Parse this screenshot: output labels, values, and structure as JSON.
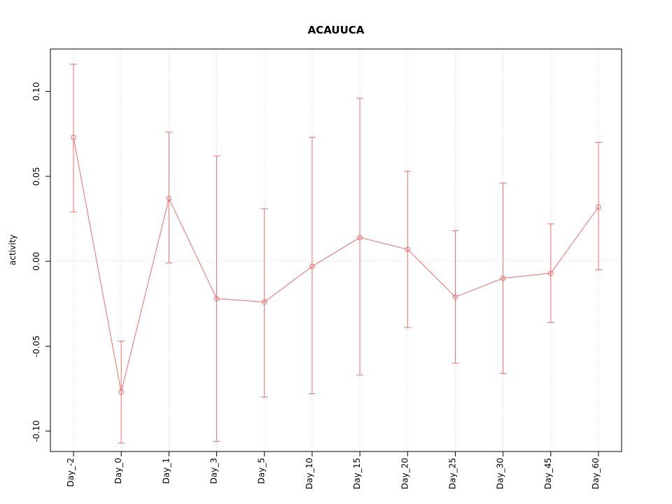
{
  "title": "ACAUUCA",
  "chart_data": {
    "type": "line",
    "title": "ACAUUCA",
    "xlabel": "",
    "ylabel": "activity",
    "categories": [
      "Day_-2",
      "Day_0",
      "Day_1",
      "Day_3",
      "Day_5",
      "Day_10",
      "Day_15",
      "Day_20",
      "Day_25",
      "Day_30",
      "Day_45",
      "Day_60"
    ],
    "series": [
      {
        "name": "activity",
        "values": [
          0.073,
          -0.077,
          0.037,
          -0.022,
          -0.024,
          -0.003,
          0.014,
          0.007,
          -0.021,
          -0.01,
          -0.007,
          0.032
        ],
        "upper": [
          0.116,
          -0.047,
          0.076,
          0.062,
          0.031,
          0.073,
          0.096,
          0.053,
          0.018,
          0.046,
          0.022,
          0.07
        ],
        "lower": [
          0.029,
          -0.107,
          -0.001,
          -0.106,
          -0.08,
          -0.078,
          -0.067,
          -0.039,
          -0.06,
          -0.066,
          -0.036,
          -0.005
        ]
      }
    ],
    "yticks": [
      -0.1,
      -0.05,
      0.0,
      0.05,
      0.1
    ],
    "ylim": [
      -0.112,
      0.125
    ],
    "grid": "dotted vertical line at each category; dotted horizontal line at 0",
    "legend": "none",
    "marker": "open-circle",
    "error_bars": true,
    "colors": {
      "series": "#f26c6c",
      "grid": "#cfcfcf",
      "axis": "#000000",
      "background": "#ffffff"
    }
  }
}
